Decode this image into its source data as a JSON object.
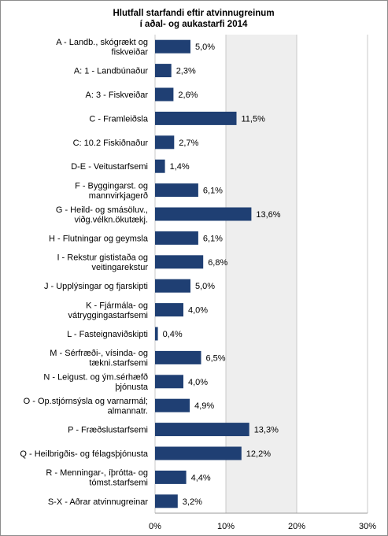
{
  "chart_data": {
    "type": "bar",
    "orientation": "horizontal",
    "title": [
      "Hlutfall starfandi eftir atvinnugreinum",
      "í aðal- og aukastarfi 2014"
    ],
    "categories": [
      [
        "A - Landb., skógrækt og",
        "fiskveiðar"
      ],
      [
        "A: 1 - Landbúnaður"
      ],
      [
        "A: 3 - Fiskveiðar"
      ],
      [
        "C - Framleiðsla"
      ],
      [
        "C: 10.2 Fiskiðnaður"
      ],
      [
        "D-E - Veitustarfsemi"
      ],
      [
        "F - Byggingarst. og",
        "mannvirkjagerð"
      ],
      [
        "G - Heild- og smásöluv.,",
        "viðg.vélkn.ökutækj."
      ],
      [
        "H - Flutningar og geymsla"
      ],
      [
        "I - Rekstur gististaða og",
        "veitingarekstur"
      ],
      [
        "J - Upplýsingar og fjarskipti"
      ],
      [
        "K - Fjármála- og",
        "vátryggingastarfsemi"
      ],
      [
        "L - Fasteignaviðskipti"
      ],
      [
        "M - Sérfræði-, vísinda- og",
        "tækni.starfsemi"
      ],
      [
        "N - Leigust. og ým.sérhæfð",
        "þjónusta"
      ],
      [
        "O - Op.stjórnsýsla og varnarmál;",
        "almannatr."
      ],
      [
        "P - Fræðslustarfsemi"
      ],
      [
        "Q - Heilbrigðis- og félagsþjónusta"
      ],
      [
        "R - Menningar-, íþrótta- og",
        "tómst.starfsemi"
      ],
      [
        "S-X - Aðrar atvinnugreinar"
      ]
    ],
    "values": [
      5.0,
      2.3,
      2.6,
      11.5,
      2.7,
      1.4,
      6.1,
      13.6,
      6.1,
      6.8,
      5.0,
      4.0,
      0.4,
      6.5,
      4.0,
      4.9,
      13.3,
      12.2,
      4.4,
      3.2
    ],
    "value_labels": [
      "5,0%",
      "2,3%",
      "2,6%",
      "11,5%",
      "2,7%",
      "1,4%",
      "6,1%",
      "13,6%",
      "6,1%",
      "6,8%",
      "5,0%",
      "4,0%",
      "0,4%",
      "6,5%",
      "4,0%",
      "4,9%",
      "13,3%",
      "12,2%",
      "4,4%",
      "3,2%"
    ],
    "xticks": [
      0,
      10,
      20,
      30
    ],
    "xtick_labels": [
      "0%",
      "10%",
      "20%",
      "30%"
    ],
    "xlim": [
      0,
      30
    ],
    "grid": true,
    "colors": {
      "bar": "#1f3f73",
      "band_dark": "#eeeeee",
      "band_light": "#ffffff",
      "gridline": "#c8c8c8"
    }
  }
}
